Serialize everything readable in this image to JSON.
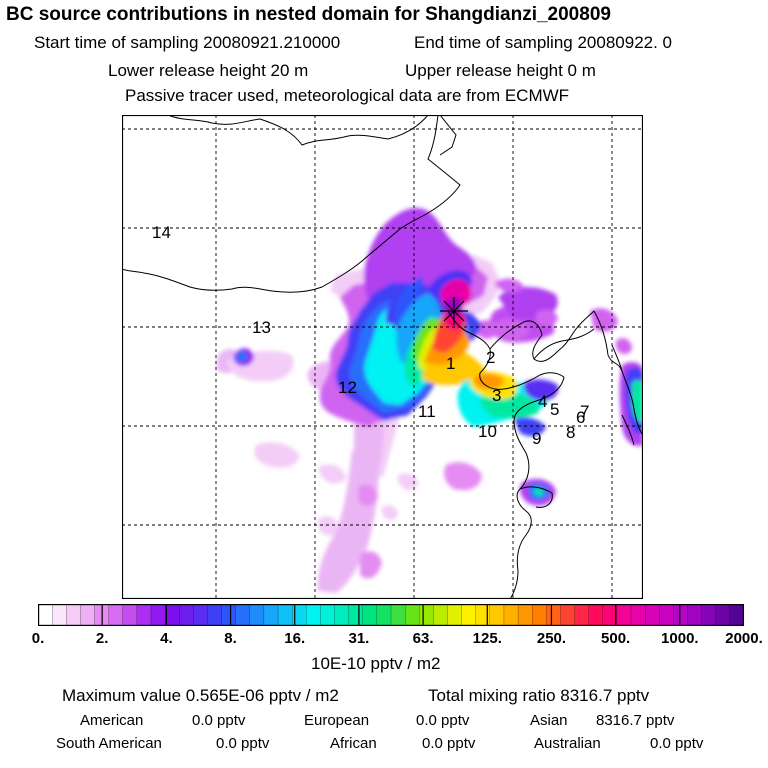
{
  "header": {
    "title": "BC  source contributions in nested domain for Shangdianzi_200809",
    "start_sampling": "Start time of sampling 20080921.210000",
    "end_sampling": "End time of sampling 20080922.     0",
    "lower_release": "Lower release height   20 m",
    "upper_release": "Upper release height    0 m",
    "tracer_note": "Passive tracer used, meteorological data are from ECMWF"
  },
  "map": {
    "region_labels": [
      "1",
      "2",
      "3",
      "4",
      "5",
      "6",
      "7",
      "8",
      "9",
      "10",
      "11",
      "12",
      "13",
      "14"
    ],
    "receptor_marker": "station-cross"
  },
  "colorbar": {
    "tick_labels": [
      "0.",
      "2.",
      "4.",
      "8.",
      "16.",
      "31.",
      "63.",
      "125.",
      "250.",
      "500.",
      "1000.",
      "2000."
    ],
    "colors": [
      "#ffffff",
      "#fbe7fb",
      "#f5cdf7",
      "#eeb0f5",
      "#e48cf2",
      "#d66cf0",
      "#c54ef0",
      "#ad2ef2",
      "#9218f2",
      "#7d0ef0",
      "#6e1eea",
      "#5a2ef2",
      "#3f3ff6",
      "#2d55fa",
      "#2670fb",
      "#1f8cfa",
      "#17a6fa",
      "#12c0f8",
      "#0cd8f6",
      "#00f2f2",
      "#00f0d8",
      "#00ecbe",
      "#00e8a0",
      "#00e480",
      "#16e060",
      "#3ee040",
      "#66e41a",
      "#96e800",
      "#bcec00",
      "#e0f000",
      "#fff000",
      "#ffe000",
      "#ffc800",
      "#ffb000",
      "#ff9800",
      "#ff7e00",
      "#ff6218",
      "#ff4432",
      "#ff2648",
      "#ff0a5c",
      "#fa0478",
      "#f20494",
      "#e604a8",
      "#d804b8",
      "#c804c2",
      "#b404c6",
      "#9e04c2",
      "#8604b8",
      "#6e04a8",
      "#540494"
    ],
    "units": "10E-10 pptv / m2"
  },
  "stats": {
    "max_value": "Maximum value  0.565E-06 pptv / m2",
    "total_mixing": "Total mixing ratio    8316.7 pptv",
    "american": "American",
    "american_val": "0.0 pptv",
    "european": "European",
    "european_val": "0.0 pptv",
    "asian": "Asian",
    "asian_val": "8316.7 pptv",
    "south_american": "South American",
    "south_american_val": "0.0 pptv",
    "african": "African",
    "african_val": "0.0 pptv",
    "australian": "Australian",
    "australian_val": "0.0 pptv"
  }
}
